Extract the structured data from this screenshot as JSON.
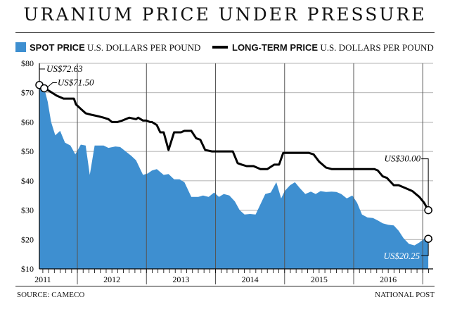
{
  "header": {
    "title": "URANIUM PRICE UNDER PRESSURE"
  },
  "legend": {
    "spot_label": "SPOT PRICE",
    "spot_unit": "U.S. DOLLARS PER POUND",
    "longterm_label": "LONG-TERM PRICE",
    "longterm_unit": "U.S. DOLLARS PER POUND"
  },
  "colors": {
    "spot_fill": "#3e8fd0",
    "long_term_line": "#000000",
    "grid": "#9a9a9a",
    "axis": "#000000"
  },
  "footer": {
    "source": "SOURCE: CAMECO",
    "credit": "NATIONAL POST"
  },
  "chart_data": {
    "type": "area",
    "title": "URANIUM PRICE UNDER PRESSURE",
    "xlabel": "",
    "ylabel": "",
    "ylim": [
      10,
      80
    ],
    "yticks": [
      10,
      20,
      30,
      40,
      50,
      60,
      70,
      80
    ],
    "ytick_labels": [
      "$10",
      "$20",
      "$30",
      "$40",
      "$50",
      "$60",
      "$70",
      "$80"
    ],
    "x_range": [
      2010.95,
      2016.65
    ],
    "year_dividers": [
      2011.5,
      2012.5,
      2013.5,
      2014.5,
      2015.5,
      2016.5
    ],
    "year_labels": [
      {
        "year": "2011",
        "x": 2011.0
      },
      {
        "year": "2012",
        "x": 2012.0
      },
      {
        "year": "2013",
        "x": 2013.0
      },
      {
        "year": "2014",
        "x": 2014.0
      },
      {
        "year": "2015",
        "x": 2015.0
      },
      {
        "year": "2016",
        "x": 2016.0
      }
    ],
    "grid": "horizontal",
    "legend_position": "top",
    "series": [
      {
        "name": "SPOT PRICE",
        "kind": "area",
        "x": [
          2010.95,
          2011.02,
          2011.07,
          2011.12,
          2011.18,
          2011.25,
          2011.32,
          2011.4,
          2011.47,
          2011.55,
          2011.62,
          2011.68,
          2011.75,
          2011.8,
          2011.88,
          2011.95,
          2012.05,
          2012.12,
          2012.2,
          2012.28,
          2012.35,
          2012.45,
          2012.52,
          2012.58,
          2012.65,
          2012.75,
          2012.82,
          2012.9,
          2012.98,
          2013.05,
          2013.15,
          2013.25,
          2013.32,
          2013.4,
          2013.48,
          2013.55,
          2013.62,
          2013.7,
          2013.78,
          2013.85,
          2013.92,
          2014.0,
          2014.08,
          2014.15,
          2014.22,
          2014.3,
          2014.38,
          2014.45,
          2014.5,
          2014.58,
          2014.65,
          2014.72,
          2014.8,
          2014.88,
          2014.95,
          2015.02,
          2015.1,
          2015.18,
          2015.25,
          2015.32,
          2015.4,
          2015.48,
          2015.55,
          2015.62,
          2015.7,
          2015.78,
          2015.85,
          2015.92,
          2016.0,
          2016.08,
          2016.15,
          2016.22,
          2016.3,
          2016.38,
          2016.45,
          2016.52,
          2016.58
        ],
        "values": [
          72.63,
          71.5,
          67,
          60,
          55.5,
          57,
          53,
          52,
          49,
          52.3,
          52,
          42,
          52,
          52,
          52,
          51.2,
          51.7,
          51.5,
          50,
          48.5,
          47,
          42,
          42.5,
          43.5,
          44,
          42,
          42.3,
          40.5,
          40.5,
          39.5,
          34.5,
          34.5,
          35,
          34.5,
          36,
          34.5,
          35.5,
          35,
          33,
          30,
          28.5,
          28.7,
          28.5,
          32,
          35.5,
          36,
          39.5,
          34,
          36.5,
          38.5,
          39.5,
          37.5,
          35.5,
          36.3,
          35.5,
          36.5,
          36.2,
          36.3,
          36.2,
          35.5,
          34,
          35,
          32.5,
          28.5,
          27.5,
          27.3,
          26.5,
          25.5,
          25,
          24.8,
          23,
          20.5,
          18.5,
          18,
          19,
          20.25,
          20.25
        ]
      },
      {
        "name": "LONG-TERM PRICE",
        "kind": "line",
        "x": [
          2010.95,
          2011.02,
          2011.1,
          2011.2,
          2011.3,
          2011.45,
          2011.48,
          2011.55,
          2011.62,
          2011.7,
          2011.8,
          2011.88,
          2011.95,
          2012.0,
          2012.08,
          2012.15,
          2012.25,
          2012.35,
          2012.38,
          2012.45,
          2012.5,
          2012.55,
          2012.58,
          2012.65,
          2012.7,
          2012.75,
          2012.82,
          2012.9,
          2013.0,
          2013.05,
          2013.1,
          2013.15,
          2013.22,
          2013.28,
          2013.35,
          2013.45,
          2013.55,
          2013.65,
          2013.75,
          2013.82,
          2013.88,
          2013.95,
          2014.05,
          2014.15,
          2014.25,
          2014.35,
          2014.42,
          2014.48,
          2014.55,
          2014.65,
          2014.75,
          2014.85,
          2014.92,
          2015.0,
          2015.05,
          2015.1,
          2015.18,
          2015.3,
          2015.45,
          2015.6,
          2015.7,
          2015.8,
          2015.85,
          2015.92,
          2015.98,
          2016.08,
          2016.15,
          2016.25,
          2016.35,
          2016.45,
          2016.52,
          2016.58
        ],
        "values": [
          72.63,
          71.5,
          70.5,
          69,
          68,
          68,
          66,
          64.5,
          63,
          62.5,
          62,
          61.5,
          61,
          60,
          60,
          60.5,
          61.5,
          61,
          61.5,
          60.5,
          60.5,
          60,
          60,
          59,
          56.5,
          56.5,
          50.5,
          56.5,
          56.5,
          57,
          57,
          57,
          54.5,
          54,
          50.5,
          50,
          50,
          50,
          50,
          46,
          45.5,
          45,
          45,
          44,
          44,
          45.5,
          45.5,
          49.5,
          49.5,
          49.5,
          49.5,
          49.5,
          49,
          46.5,
          45.5,
          44.5,
          44,
          44,
          44,
          44,
          44,
          44,
          43.5,
          41.5,
          41,
          38.5,
          38.5,
          37.5,
          36.5,
          34.5,
          32.5,
          30
        ]
      }
    ],
    "annotations": [
      {
        "text": "US$72.63",
        "series": "LONG-TERM PRICE",
        "x": 2010.95,
        "y": 72.63
      },
      {
        "text": "US$71.50",
        "series": "LONG-TERM PRICE",
        "x": 2011.02,
        "y": 71.5
      },
      {
        "text": "US$30.00",
        "series": "LONG-TERM PRICE",
        "x": 2016.58,
        "y": 30
      },
      {
        "text": "US$20.25",
        "series": "SPOT PRICE",
        "x": 2016.58,
        "y": 20.25
      }
    ]
  }
}
